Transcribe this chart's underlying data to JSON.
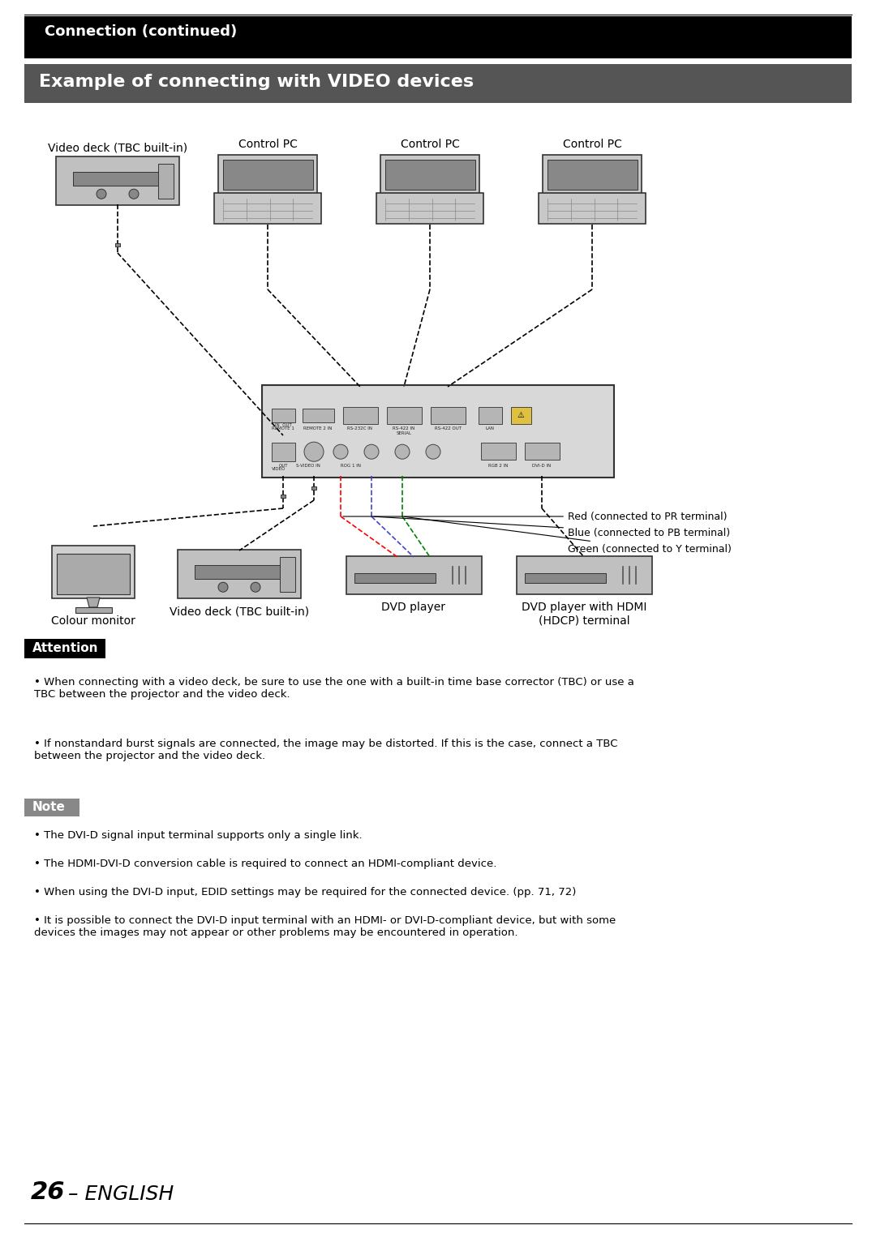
{
  "page_bg": "#ffffff",
  "top_bar_color": "#000000",
  "top_bar_text": "Connection (continued)",
  "top_bar_text_color": "#ffffff",
  "section_bar_color": "#555555",
  "section_bar_text": "Example of connecting with VIDEO devices",
  "section_bar_text_color": "#ffffff",
  "attention_bar_color": "#000000",
  "attention_bar_text": "Attention",
  "note_bar_color": "#888888",
  "note_bar_text": "Note",
  "attention_bullets": [
    "When connecting with a video deck, be sure to use the one with a built-in time base corrector (TBC) or use a\nTBC between the projector and the video deck.",
    "If nonstandard burst signals are connected, the image may be distorted. If this is the case, connect a TBC\nbetween the projector and the video deck."
  ],
  "note_bullets": [
    "The DVI-D signal input terminal supports only a single link.",
    "The HDMI-DVI-D conversion cable is required to connect an HDMI-compliant device.",
    "When using the DVI-D input, EDID settings may be required for the connected device. (pp. 71, 72)",
    "It is possible to connect the DVI-D input terminal with an HDMI- or DVI-D-compliant device, but with some\ndevices the images may not appear or other problems may be encountered in operation."
  ],
  "page_number": "26",
  "page_suffix": " – ENGLISH",
  "device_labels": {
    "vdeck_top": "Video deck (TBC built-in)",
    "ctrl_pc1": "Control PC",
    "ctrl_pc2": "Control PC",
    "ctrl_pc3": "Control PC",
    "colour_monitor": "Colour monitor",
    "vdeck_bottom": "Video deck (TBC built-in)",
    "dvd_player": "DVD player",
    "dvd_hdmi": "DVD player with HDMI\n(HDCP) terminal"
  },
  "component_labels": [
    "Red (connected to PR terminal)",
    "Blue (connected to PB terminal)",
    "Green (connected to Y terminal)"
  ]
}
